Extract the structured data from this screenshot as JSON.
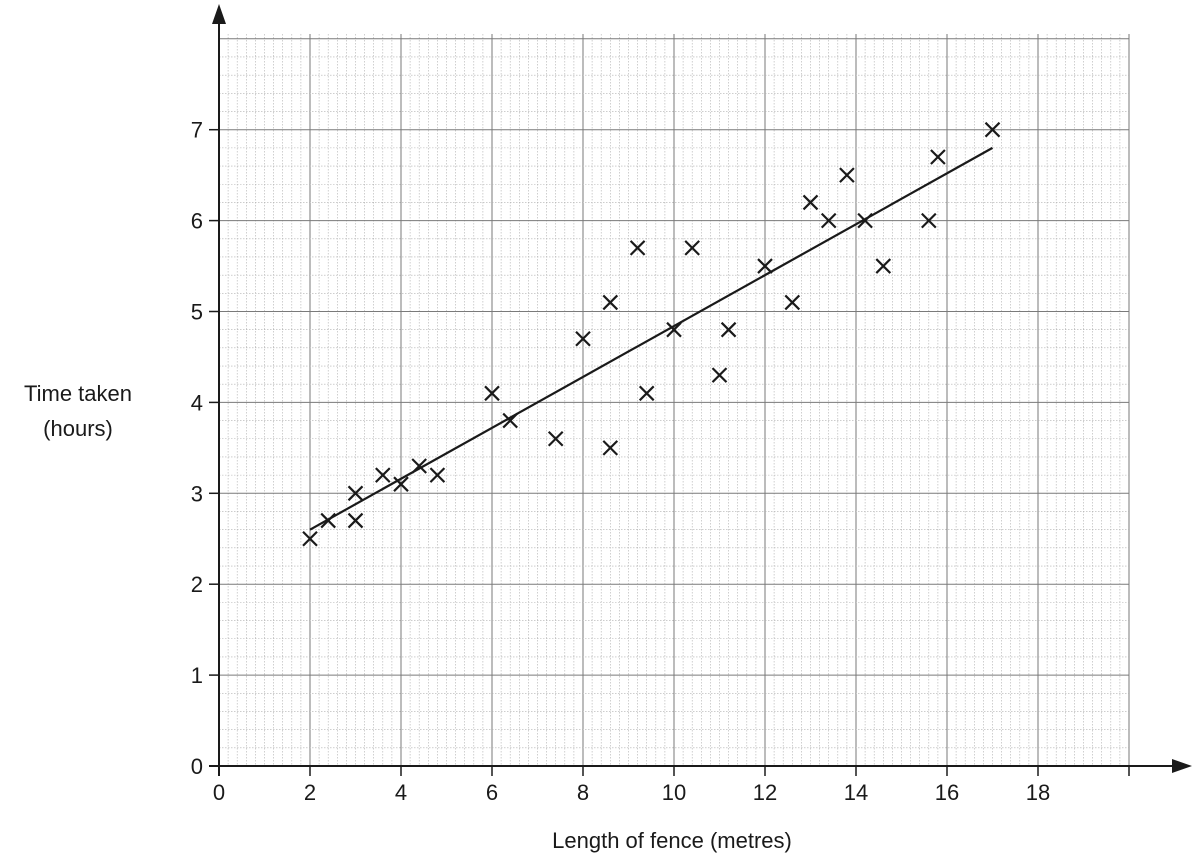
{
  "chart_data": {
    "type": "scatter",
    "title": "",
    "xlabel": "Length of fence (metres)",
    "ylabel": [
      "Time taken",
      "(hours)"
    ],
    "xlim": [
      0,
      20
    ],
    "ylim": [
      0,
      7
    ],
    "x_ticks": [
      0,
      2,
      4,
      6,
      8,
      10,
      12,
      14,
      16,
      18
    ],
    "y_ticks": [
      0,
      1,
      2,
      3,
      4,
      5,
      6,
      7
    ],
    "grid": true,
    "grid_minor_step": 0.2,
    "marker": "cross",
    "series": [
      {
        "points": [
          [
            2,
            2.5
          ],
          [
            2.4,
            2.7
          ],
          [
            3,
            3.0
          ],
          [
            3,
            2.7
          ],
          [
            3.6,
            3.2
          ],
          [
            4,
            3.1
          ],
          [
            4.4,
            3.3
          ],
          [
            4.8,
            3.2
          ],
          [
            6,
            4.1
          ],
          [
            6.4,
            3.8
          ],
          [
            7.4,
            3.6
          ],
          [
            8,
            4.7
          ],
          [
            8.6,
            5.1
          ],
          [
            8.6,
            3.5
          ],
          [
            9.2,
            5.7
          ],
          [
            9.4,
            4.1
          ],
          [
            10,
            4.8
          ],
          [
            10.4,
            5.7
          ],
          [
            11,
            4.3
          ],
          [
            11.2,
            4.8
          ],
          [
            12,
            5.5
          ],
          [
            12.6,
            5.1
          ],
          [
            13,
            6.2
          ],
          [
            13.4,
            6.0
          ],
          [
            13.8,
            6.5
          ],
          [
            14.2,
            6.0
          ],
          [
            14.6,
            5.5
          ],
          [
            15.6,
            6.0
          ],
          [
            15.8,
            6.7
          ],
          [
            17,
            7.0
          ]
        ]
      }
    ],
    "trend_line": {
      "x1": 2,
      "y1": 2.6,
      "x2": 17,
      "y2": 6.8
    },
    "colors": {
      "major_grid": "#7a7a7a",
      "minor_grid": "#b0b0b0",
      "axis": "#1a1a1a",
      "marker": "#1a1a1a",
      "line": "#1a1a1a"
    }
  }
}
